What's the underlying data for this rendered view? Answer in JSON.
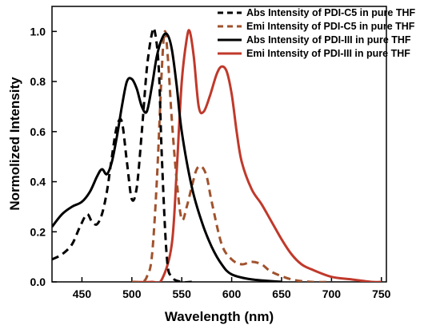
{
  "chart_data": {
    "type": "line",
    "title": "",
    "xlabel": "Wavelength (nm)",
    "ylabel": "Normolized Intensity",
    "xlim": [
      420,
      755
    ],
    "ylim": [
      0,
      1.1
    ],
    "x_ticks": [
      450,
      500,
      550,
      600,
      650,
      700,
      750
    ],
    "y_ticks": [
      0.0,
      0.2,
      0.4,
      0.6,
      0.8,
      1.0
    ],
    "x_tick_labels": [
      "450",
      "500",
      "550",
      "600",
      "650",
      "700",
      "750"
    ],
    "y_tick_labels": [
      "0.0",
      "0.2",
      "0.4",
      "0.6",
      "0.8",
      "1.0"
    ],
    "grid": false,
    "legend_position": "top-right",
    "series": [
      {
        "name": "Abs Intensity of PDI-C5 in pure THF",
        "color": "#000000",
        "dash": "dashed",
        "x": [
          420,
          430,
          440,
          448,
          455,
          460,
          465,
          470,
          475,
          480,
          485,
          490,
          495,
          500,
          505,
          510,
          515,
          520,
          523,
          527,
          530,
          535,
          540,
          550,
          560
        ],
        "y": [
          0.09,
          0.11,
          0.15,
          0.22,
          0.27,
          0.24,
          0.23,
          0.27,
          0.36,
          0.5,
          0.62,
          0.64,
          0.48,
          0.33,
          0.38,
          0.6,
          0.85,
          0.99,
          1.0,
          0.85,
          0.5,
          0.1,
          0.02,
          0.0,
          0.0
        ]
      },
      {
        "name": "Emi Intensity of PDI-C5 in pure THF",
        "color": "#a0522d",
        "dash": "dashed",
        "x": [
          500,
          510,
          515,
          520,
          525,
          530,
          533,
          536,
          540,
          545,
          550,
          555,
          560,
          565,
          570,
          575,
          580,
          590,
          600,
          610,
          620,
          630,
          640,
          660,
          680,
          700
        ],
        "y": [
          0.0,
          0.0,
          0.02,
          0.1,
          0.4,
          0.85,
          1.0,
          0.9,
          0.65,
          0.4,
          0.25,
          0.3,
          0.38,
          0.45,
          0.46,
          0.42,
          0.32,
          0.15,
          0.09,
          0.07,
          0.08,
          0.07,
          0.04,
          0.01,
          0.0,
          0.0
        ]
      },
      {
        "name": "Abs Intensity of PDI-III in pure THF",
        "color": "#000000",
        "dash": "solid",
        "x": [
          420,
          430,
          440,
          450,
          458,
          465,
          470,
          475,
          480,
          485,
          490,
          495,
          500,
          505,
          510,
          515,
          520,
          525,
          530,
          535,
          540,
          545,
          550,
          560,
          570,
          580,
          590,
          600,
          620,
          650
        ],
        "y": [
          0.22,
          0.27,
          0.3,
          0.32,
          0.36,
          0.42,
          0.45,
          0.43,
          0.48,
          0.58,
          0.7,
          0.8,
          0.81,
          0.77,
          0.7,
          0.68,
          0.78,
          0.9,
          0.97,
          0.99,
          0.93,
          0.78,
          0.6,
          0.38,
          0.24,
          0.14,
          0.07,
          0.03,
          0.01,
          0.0
        ]
      },
      {
        "name": "Emi Intensity of PDI-III in pure THF",
        "color": "#c0392b",
        "dash": "solid",
        "x": [
          500,
          520,
          530,
          540,
          545,
          550,
          555,
          558,
          562,
          567,
          572,
          578,
          585,
          590,
          595,
          600,
          605,
          610,
          620,
          630,
          640,
          650,
          660,
          670,
          680,
          700,
          720,
          740,
          750
        ],
        "y": [
          0.0,
          0.0,
          0.01,
          0.15,
          0.45,
          0.8,
          0.97,
          1.0,
          0.9,
          0.7,
          0.68,
          0.74,
          0.83,
          0.86,
          0.84,
          0.75,
          0.6,
          0.48,
          0.37,
          0.31,
          0.24,
          0.17,
          0.11,
          0.07,
          0.05,
          0.02,
          0.01,
          0.0,
          0.0
        ]
      }
    ]
  }
}
